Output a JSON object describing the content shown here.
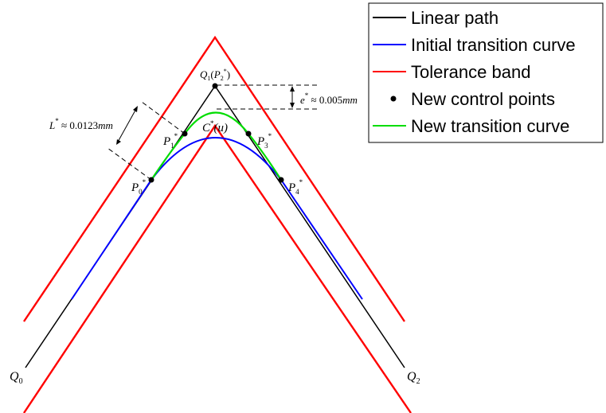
{
  "colors": {
    "linear_path": "#000000",
    "initial_curve": "#0000ff",
    "tolerance_band": "#ff0000",
    "control_points": "#000000",
    "new_curve": "#00dd00"
  },
  "legend": {
    "items": [
      {
        "key": "linear_path",
        "label": "Linear path",
        "marker": "line"
      },
      {
        "key": "initial_curve",
        "label": "Initial transition curve",
        "marker": "line"
      },
      {
        "key": "tolerance_band",
        "label": "Tolerance band",
        "marker": "line"
      },
      {
        "key": "control_points",
        "label": "New control points",
        "marker": "point"
      },
      {
        "key": "new_curve",
        "label": "New transition curve",
        "marker": "line"
      }
    ]
  },
  "labels": {
    "q0": {
      "main": "Q",
      "sub": "0"
    },
    "q2": {
      "main": "Q",
      "sub": "2"
    },
    "q1": {
      "main": "Q",
      "sub": "1",
      "paren_open": "(",
      "p_main": "P",
      "p_sub": "2",
      "p_sup": "*",
      "paren_close": ")"
    },
    "p0": {
      "main": "P",
      "sub": "0",
      "sup": "*"
    },
    "p1": {
      "main": "P",
      "sub": "1",
      "sup": "*"
    },
    "p3": {
      "main": "P",
      "sub": "3",
      "sup": "*"
    },
    "p4": {
      "main": "P",
      "sub": "4",
      "sup": "*"
    },
    "cu": {
      "main": "C",
      "sup": "*",
      "arg": "(u)"
    },
    "e_dim": {
      "main": "e",
      "sup": "*",
      "text": " ≈ 0.005",
      "unit": "mm"
    },
    "l_dim": {
      "main": "L",
      "sup": "*",
      "text": " ≈ 0.0123",
      "unit": "mm"
    }
  }
}
